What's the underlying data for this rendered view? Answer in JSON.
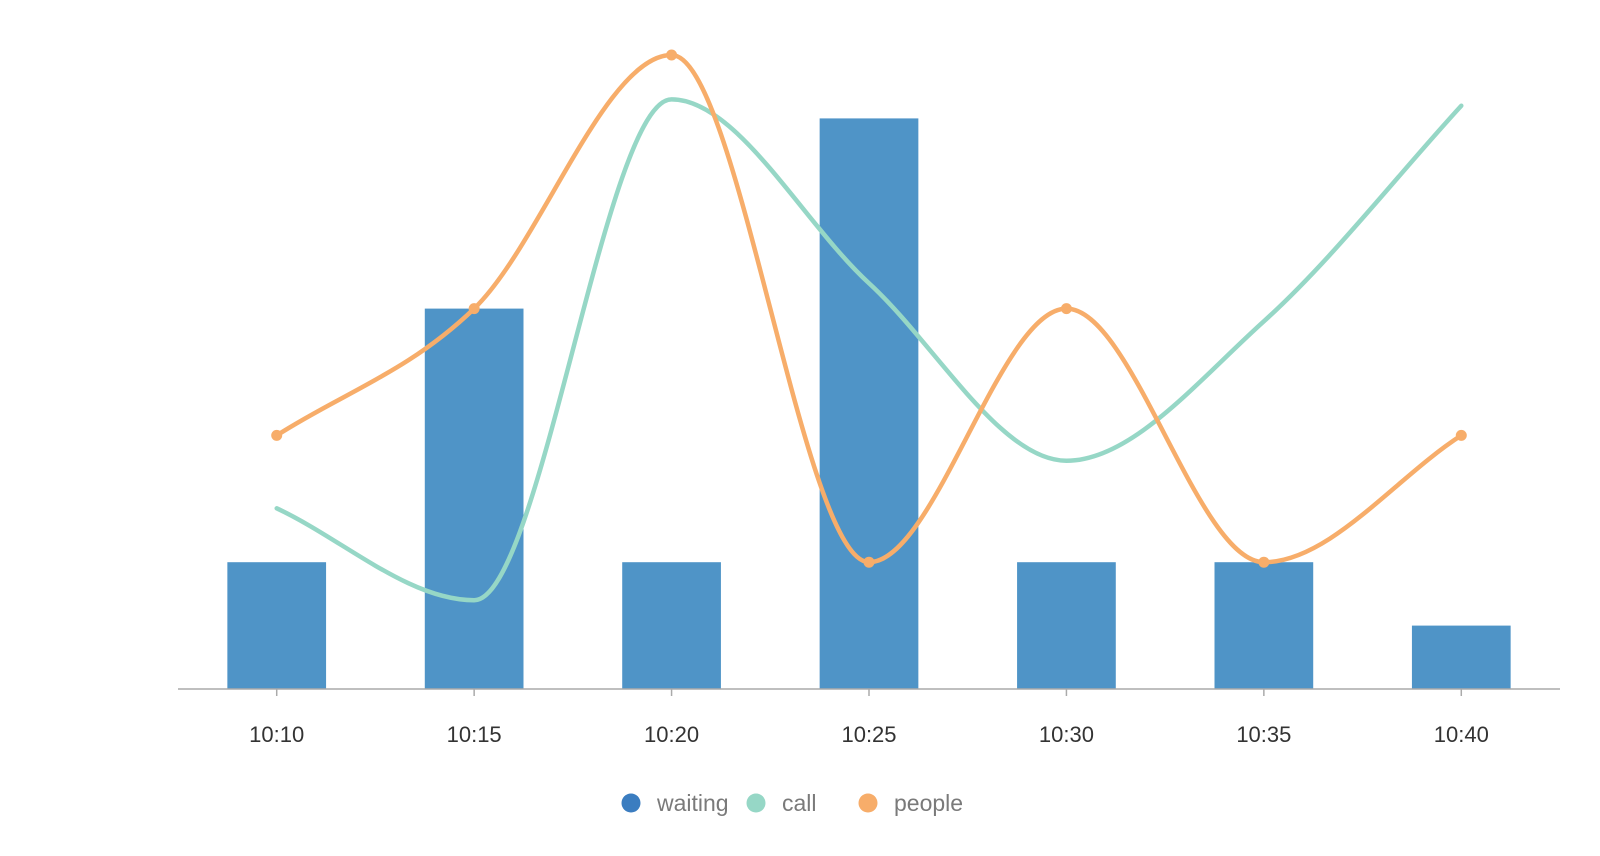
{
  "chart_data": {
    "type": "bar",
    "categories": [
      "10:10",
      "10:15",
      "10:20",
      "10:25",
      "10:30",
      "10:35",
      "10:40"
    ],
    "ylim": [
      0,
      10
    ],
    "grid": false,
    "legend_placement": "bottom-center",
    "series": [
      {
        "name": "waiting",
        "type": "bar",
        "color": "#4f94c7",
        "values": [
          2,
          6,
          2,
          9,
          2,
          2,
          1
        ]
      },
      {
        "name": "call",
        "type": "line",
        "smooth": true,
        "markers": false,
        "color": "#96d7c6",
        "values": [
          2.85,
          1.4,
          9.3,
          6.4,
          3.6,
          5.8,
          9.2
        ]
      },
      {
        "name": "people",
        "type": "line",
        "smooth": true,
        "markers": true,
        "color": "#f7ad6a",
        "values": [
          4,
          6,
          10,
          2,
          6,
          2,
          4
        ]
      }
    ],
    "legend": [
      {
        "name": "waiting",
        "color": "#3b7dc0"
      },
      {
        "name": "call",
        "color": "#96d7c6"
      },
      {
        "name": "people",
        "color": "#f7ad6a"
      }
    ]
  }
}
